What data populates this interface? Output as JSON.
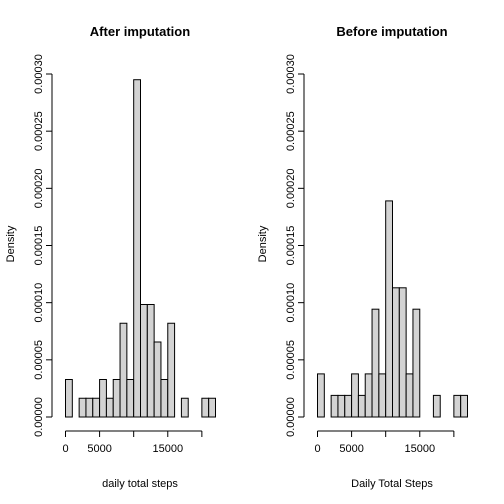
{
  "chart_data": [
    {
      "type": "bar",
      "title": "After imputation",
      "xlabel": "daily total steps",
      "ylabel": "Density",
      "bin_width": 1000,
      "xlim": [
        0,
        22000
      ],
      "ylim": [
        0,
        0.0003
      ],
      "x_ticks": [
        0,
        5000,
        15000
      ],
      "y_ticks": [
        "0.00000",
        "0.00005",
        "0.00010",
        "0.00015",
        "0.00020",
        "0.00025",
        "0.00030"
      ],
      "bins_start": [
        0,
        1000,
        2000,
        3000,
        4000,
        5000,
        6000,
        7000,
        8000,
        9000,
        10000,
        11000,
        12000,
        13000,
        14000,
        15000,
        16000,
        17000,
        18000,
        19000,
        20000,
        21000
      ],
      "values": [
        3.28e-05,
        0.0,
        1.64e-05,
        1.64e-05,
        1.64e-05,
        3.28e-05,
        1.64e-05,
        3.28e-05,
        8.2e-05,
        3.28e-05,
        0.000295,
        9.84e-05,
        9.84e-05,
        6.56e-05,
        3.28e-05,
        8.2e-05,
        0.0,
        1.64e-05,
        0.0,
        0.0,
        1.64e-05,
        1.64e-05
      ]
    },
    {
      "type": "bar",
      "title": "Before imputation",
      "xlabel": "Daily Total Steps",
      "ylabel": "Density",
      "bin_width": 1000,
      "xlim": [
        0,
        22000
      ],
      "ylim": [
        0,
        0.0003
      ],
      "x_ticks": [
        0,
        5000,
        15000
      ],
      "y_ticks": [
        "0.00000",
        "0.00005",
        "0.00010",
        "0.00015",
        "0.00020",
        "0.00025",
        "0.00030"
      ],
      "bins_start": [
        0,
        1000,
        2000,
        3000,
        4000,
        5000,
        6000,
        7000,
        8000,
        9000,
        10000,
        11000,
        12000,
        13000,
        14000,
        15000,
        16000,
        17000,
        18000,
        19000,
        20000,
        21000
      ],
      "values": [
        3.77e-05,
        0.0,
        1.89e-05,
        1.89e-05,
        1.89e-05,
        3.77e-05,
        1.89e-05,
        3.77e-05,
        9.43e-05,
        3.77e-05,
        0.000189,
        0.000113,
        0.000113,
        3.77e-05,
        9.43e-05,
        0.0,
        0.0,
        1.89e-05,
        0.0,
        0.0,
        1.89e-05,
        1.89e-05
      ]
    }
  ]
}
